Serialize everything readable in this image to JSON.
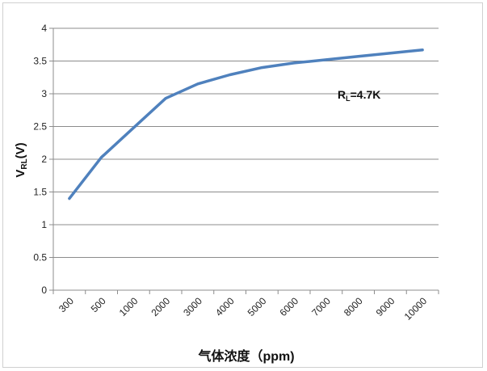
{
  "chart_data": {
    "type": "line",
    "categories": [
      "300",
      "500",
      "1000",
      "2000",
      "3000",
      "4000",
      "5000",
      "6000",
      "7000",
      "8000",
      "9000",
      "10000"
    ],
    "series": [
      {
        "values": [
          1.4,
          2.03,
          2.48,
          2.93,
          3.15,
          3.29,
          3.4,
          3.47,
          3.52,
          3.57,
          3.62,
          3.67
        ],
        "color": "#4f81bd"
      }
    ],
    "ylim": [
      0,
      4
    ],
    "yticks": [
      "0",
      "0.5",
      "1",
      "1.5",
      "2",
      "2.5",
      "3",
      "3.5",
      "4"
    ],
    "ytick_values": [
      0,
      0.5,
      1,
      1.5,
      2,
      2.5,
      3,
      3.5,
      4
    ],
    "grid": true,
    "legend": "none",
    "xlabel": "气体浓度（ppm)",
    "ylabel_main": "V",
    "ylabel_sub": "RL",
    "ylabel_unit": "(V)",
    "annotation_main": "R",
    "annotation_sub": "L",
    "annotation_rest": "=4.7K",
    "grid_color": "#8c8c8c",
    "axis_color": "#8c8c8c"
  }
}
